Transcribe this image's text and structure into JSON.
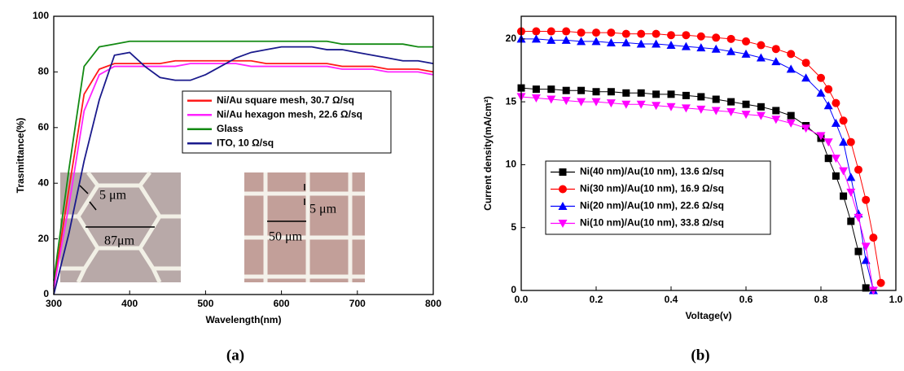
{
  "chart_data": [
    {
      "type": "line",
      "caption": "(a)",
      "x_label": "Wavelength(nm)",
      "y_label": "Trasmittance(%)",
      "xlim": [
        300,
        800
      ],
      "xticks": [
        300,
        400,
        500,
        600,
        700,
        800
      ],
      "ylim": [
        0,
        100
      ],
      "yticks": [
        0,
        20,
        40,
        60,
        80,
        100
      ],
      "legend": "center right",
      "x": [
        300,
        320,
        340,
        360,
        380,
        400,
        420,
        440,
        460,
        480,
        500,
        520,
        540,
        560,
        580,
        600,
        620,
        640,
        660,
        680,
        700,
        720,
        740,
        760,
        780,
        800
      ],
      "series": [
        {
          "name": "Ni/Au square mesh, 30.7 Ω/sq",
          "color": "#ff1a1a",
          "values": [
            3,
            38,
            72,
            81,
            83,
            83,
            83,
            83,
            84,
            84,
            84,
            84,
            84,
            84,
            83,
            83,
            83,
            83,
            83,
            82,
            82,
            82,
            81,
            81,
            81,
            80
          ]
        },
        {
          "name": "Ni/Au hexagon mesh, 22.6 Ω/sq",
          "color": "#ff22ff",
          "values": [
            2,
            32,
            66,
            79,
            82,
            82,
            82,
            82,
            82,
            83,
            83,
            83,
            83,
            82,
            82,
            82,
            82,
            82,
            82,
            81,
            81,
            81,
            80,
            80,
            80,
            79
          ]
        },
        {
          "name": "Glass",
          "color": "#138a13",
          "values": [
            5,
            45,
            82,
            89,
            90,
            91,
            91,
            91,
            91,
            91,
            91,
            91,
            91,
            91,
            91,
            91,
            91,
            91,
            91,
            90,
            90,
            90,
            90,
            90,
            89,
            89
          ]
        },
        {
          "name": "ITO, 10 Ω/sq",
          "color": "#1a1a8c",
          "values": [
            0,
            22,
            48,
            70,
            86,
            87,
            82,
            78,
            77,
            77,
            79,
            82,
            85,
            87,
            88,
            89,
            89,
            89,
            88,
            88,
            87,
            86,
            85,
            84,
            84,
            83
          ]
        }
      ],
      "annotations": [
        "5 μm",
        "87μm",
        "5 μm",
        "50 μm"
      ]
    },
    {
      "type": "line",
      "caption": "(b)",
      "x_label": "Voltage(v)",
      "y_label": "Current density(mA/cm²)",
      "xlim": [
        0,
        1
      ],
      "xticks": [
        {
          "value": 0,
          "label": "0.0"
        },
        0.2,
        0.4,
        0.6,
        0.8,
        {
          "value": 1,
          "label": "1.0"
        }
      ],
      "ylim": [
        0,
        21.8
      ],
      "yticks": [
        0,
        5,
        10,
        15,
        20
      ],
      "legend": "center left",
      "x": [
        0,
        0.04,
        0.08,
        0.12,
        0.16,
        0.2,
        0.24,
        0.28,
        0.32,
        0.36,
        0.4,
        0.44,
        0.48,
        0.52,
        0.56,
        0.6,
        0.64,
        0.68,
        0.72,
        0.76,
        0.8,
        0.82,
        0.84,
        0.86,
        0.88,
        0.9,
        0.92,
        0.94,
        0.96
      ],
      "series": [
        {
          "name": "Ni(40 nm)/Au(10 nm), 13.6 Ω/sq",
          "color": "#000000",
          "marker": "square",
          "values": [
            16.1,
            16.0,
            16.0,
            15.9,
            15.9,
            15.8,
            15.8,
            15.7,
            15.7,
            15.6,
            15.6,
            15.5,
            15.4,
            15.2,
            15.0,
            14.8,
            14.6,
            14.3,
            13.9,
            13.1,
            12.1,
            10.5,
            9.1,
            7.5,
            5.5,
            3.1,
            0.2,
            null,
            null
          ]
        },
        {
          "name": "Ni(30 nm)/Au(10 nm), 16.9 Ω/sq",
          "color": "#ff0000",
          "marker": "circle",
          "values": [
            20.6,
            20.6,
            20.6,
            20.6,
            20.5,
            20.5,
            20.5,
            20.4,
            20.4,
            20.4,
            20.3,
            20.3,
            20.2,
            20.1,
            20.0,
            19.8,
            19.5,
            19.2,
            18.8,
            18.1,
            16.9,
            16.0,
            14.9,
            13.5,
            11.8,
            9.6,
            7.2,
            4.2,
            0.6
          ]
        },
        {
          "name": "Ni(20 nm)/Au(10 nm), 22.6  Ω/sq",
          "color": "#0000ff",
          "marker": "triangle-up",
          "values": [
            20.0,
            20.0,
            19.9,
            19.9,
            19.8,
            19.8,
            19.7,
            19.7,
            19.6,
            19.6,
            19.5,
            19.4,
            19.3,
            19.2,
            19.0,
            18.8,
            18.5,
            18.2,
            17.6,
            16.9,
            15.7,
            14.7,
            13.3,
            11.8,
            9.0,
            6.1,
            2.4,
            0.0,
            null
          ]
        },
        {
          "name": "Ni(10 nm)/Au(10 nm), 33.8  Ω/sq",
          "color": "#ff00ff",
          "marker": "triangle-down",
          "values": [
            15.4,
            15.3,
            15.2,
            15.1,
            15.0,
            15.0,
            14.9,
            14.8,
            14.8,
            14.7,
            14.6,
            14.5,
            14.4,
            14.3,
            14.2,
            14.0,
            13.9,
            13.6,
            13.3,
            12.9,
            12.3,
            11.8,
            10.5,
            9.5,
            7.8,
            5.8,
            3.5,
            0.0,
            null
          ]
        }
      ]
    }
  ]
}
